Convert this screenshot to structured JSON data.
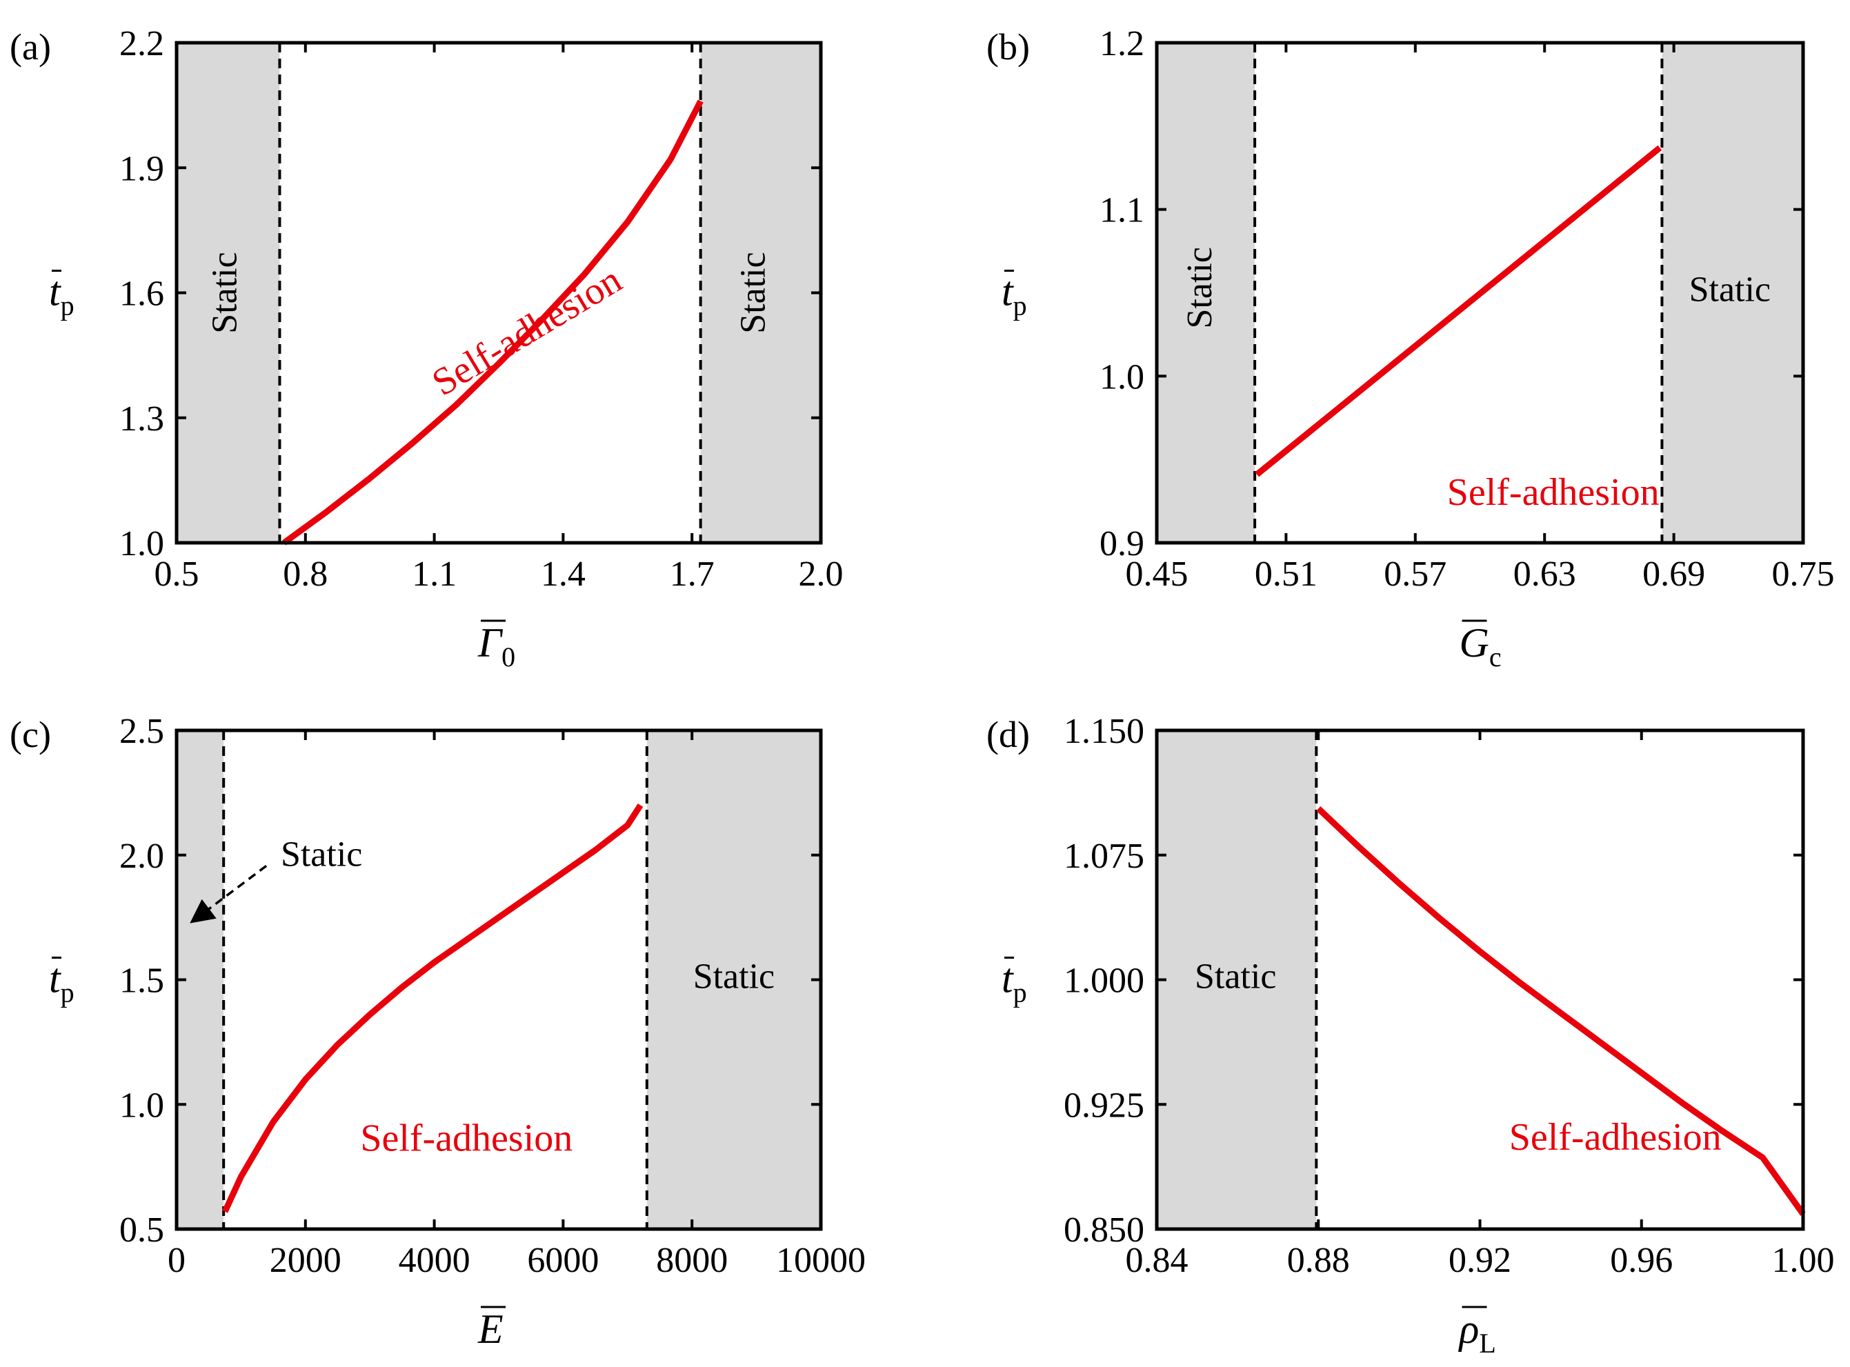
{
  "figure": {
    "background": "#ffffff",
    "shade_color": "#d9d9d9",
    "curve_color": "#e8000b",
    "frame_color": "#000000"
  },
  "chart_data": [
    {
      "id": "a",
      "panel_label": "(a)",
      "type": "line",
      "xlabel": {
        "symbol": "Γ",
        "subscript": "0",
        "overbar": true
      },
      "ylabel": {
        "symbol": "t",
        "subscript": "p",
        "overbar": true
      },
      "xlim": [
        0.5,
        2.0
      ],
      "ylim": [
        1.0,
        2.2
      ],
      "xticks": [
        0.5,
        0.8,
        1.1,
        1.4,
        1.7,
        2.0
      ],
      "xtick_labels": [
        "0.5",
        "0.8",
        "1.1",
        "1.4",
        "1.7",
        "2.0"
      ],
      "yticks": [
        1.0,
        1.3,
        1.6,
        1.9,
        2.2
      ],
      "ytick_labels": [
        "1.0",
        "1.3",
        "1.6",
        "1.9",
        "2.2"
      ],
      "static_regions": [
        [
          0.5,
          0.74
        ],
        [
          1.72,
          2.0
        ]
      ],
      "thresholds": [
        0.74,
        1.72
      ],
      "series": [
        {
          "name": "Self-adhesion",
          "x": [
            0.75,
            0.85,
            0.95,
            1.05,
            1.15,
            1.25,
            1.35,
            1.45,
            1.55,
            1.65,
            1.72
          ],
          "y": [
            1.0,
            1.075,
            1.155,
            1.24,
            1.33,
            1.43,
            1.535,
            1.645,
            1.77,
            1.92,
            2.06
          ]
        }
      ],
      "annotations": [
        {
          "text": "Static",
          "x": 0.62,
          "y": 1.6,
          "rotate": -90
        },
        {
          "text": "Static",
          "x": 1.85,
          "y": 1.6,
          "rotate": -90
        },
        {
          "text": "Self-adhesion",
          "x": 1.32,
          "y": 1.5,
          "rotate": -31,
          "color": "red"
        }
      ]
    },
    {
      "id": "b",
      "panel_label": "(b)",
      "type": "line",
      "xlabel": {
        "symbol": "G",
        "subscript": "c",
        "overbar": true
      },
      "ylabel": {
        "symbol": "t",
        "subscript": "p",
        "overbar": true
      },
      "xlim": [
        0.45,
        0.75
      ],
      "ylim": [
        0.9,
        1.2
      ],
      "xticks": [
        0.45,
        0.51,
        0.57,
        0.63,
        0.69,
        0.75
      ],
      "xtick_labels": [
        "0.45",
        "0.51",
        "0.57",
        "0.63",
        "0.69",
        "0.75"
      ],
      "yticks": [
        0.9,
        1.0,
        1.1,
        1.2
      ],
      "ytick_labels": [
        "0.9",
        "1.0",
        "1.1",
        "1.2"
      ],
      "static_regions": [
        [
          0.45,
          0.4955
        ],
        [
          0.6845,
          0.75
        ]
      ],
      "thresholds": [
        0.4955,
        0.6845
      ],
      "series": [
        {
          "name": "Self-adhesion",
          "x": [
            0.4965,
            0.6835
          ],
          "y": [
            0.941,
            1.137
          ]
        }
      ],
      "annotations": [
        {
          "text": "Static",
          "x": 0.4715,
          "y": 1.053,
          "rotate": -90
        },
        {
          "text": "Static",
          "x": 0.716,
          "y": 1.05,
          "rotate": 0
        },
        {
          "text": "Self-adhesion",
          "x": 0.634,
          "y": 0.928,
          "rotate": 0,
          "color": "red"
        }
      ]
    },
    {
      "id": "c",
      "panel_label": "(c)",
      "type": "line",
      "xlabel": {
        "symbol": "E",
        "subscript": "",
        "overbar": true
      },
      "ylabel": {
        "symbol": "t",
        "subscript": "p",
        "overbar": true
      },
      "xlim": [
        0,
        10000
      ],
      "ylim": [
        0.5,
        2.5
      ],
      "xticks": [
        0,
        2000,
        4000,
        6000,
        8000,
        10000
      ],
      "xtick_labels": [
        "0",
        "2000",
        "4000",
        "6000",
        "8000",
        "10000"
      ],
      "yticks": [
        0.5,
        1.0,
        1.5,
        2.0,
        2.5
      ],
      "ytick_labels": [
        "0.5",
        "1.0",
        "1.5",
        "2.0",
        "2.5"
      ],
      "static_regions": [
        [
          0,
          730
        ],
        [
          7300,
          10000
        ]
      ],
      "thresholds": [
        730,
        7300
      ],
      "series": [
        {
          "name": "Self-adhesion",
          "x": [
            750,
            1000,
            1500,
            2000,
            2500,
            3000,
            3500,
            4000,
            4500,
            5000,
            5500,
            6000,
            6500,
            7000,
            7200
          ],
          "y": [
            0.57,
            0.71,
            0.93,
            1.1,
            1.24,
            1.36,
            1.47,
            1.57,
            1.66,
            1.75,
            1.84,
            1.93,
            2.02,
            2.12,
            2.2
          ]
        }
      ],
      "annotations": [
        {
          "text": "Static",
          "x": 2250,
          "y": 1.99,
          "rotate": 0,
          "arrow_to": [
            150,
            1.71
          ]
        },
        {
          "text": "Static",
          "x": 8650,
          "y": 1.5,
          "rotate": 0
        },
        {
          "text": "Self-adhesion",
          "x": 4500,
          "y": 0.85,
          "rotate": 0,
          "color": "red"
        }
      ]
    },
    {
      "id": "d",
      "panel_label": "(d)",
      "type": "line",
      "xlabel": {
        "symbol": "ρ",
        "subscript": "L",
        "overbar": true
      },
      "ylabel": {
        "symbol": "t",
        "subscript": "p",
        "overbar": true
      },
      "xlim": [
        0.84,
        1.0
      ],
      "ylim": [
        0.85,
        1.15
      ],
      "xticks": [
        0.84,
        0.88,
        0.92,
        0.96,
        1.0
      ],
      "xtick_labels": [
        "0.84",
        "0.88",
        "0.92",
        "0.96",
        "1.00"
      ],
      "yticks": [
        0.85,
        0.925,
        1.0,
        1.075,
        1.15
      ],
      "ytick_labels": [
        "0.850",
        "0.925",
        "1.000",
        "1.075",
        "1.150"
      ],
      "static_regions": [
        [
          0.84,
          0.8795
        ]
      ],
      "thresholds": [
        0.8795
      ],
      "series": [
        {
          "name": "Self-adhesion",
          "x": [
            0.88,
            0.89,
            0.9,
            0.91,
            0.92,
            0.93,
            0.94,
            0.95,
            0.96,
            0.97,
            0.98,
            0.99,
            1.0
          ],
          "y": [
            1.103,
            1.08,
            1.058,
            1.037,
            1.017,
            0.998,
            0.98,
            0.962,
            0.944,
            0.926,
            0.909,
            0.893,
            0.859
          ]
        }
      ],
      "annotations": [
        {
          "text": "Static",
          "x": 0.8595,
          "y": 1.0,
          "rotate": 0
        },
        {
          "text": "Self-adhesion",
          "x": 0.9535,
          "y": 0.903,
          "rotate": 0,
          "color": "red"
        }
      ]
    }
  ]
}
